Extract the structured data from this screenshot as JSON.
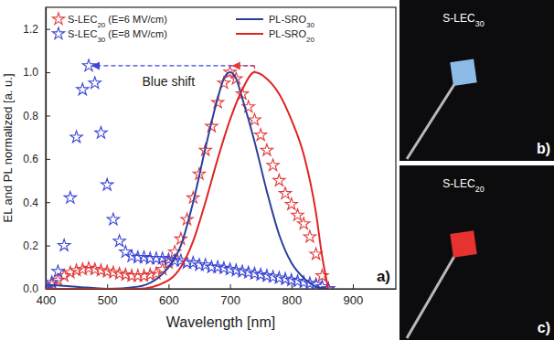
{
  "chart_data": {
    "type": "line",
    "x_label": "Wavelength [nm]",
    "y_label": "EL and PL normalized [a. u.]",
    "annotation": "Blue shift",
    "panel_label": "a)",
    "legend": "top",
    "xlim": [
      400,
      970
    ],
    "xticks": [
      400,
      500,
      600,
      700,
      800,
      900
    ],
    "ylim": [
      0,
      1.3
    ],
    "yticks": [
      {
        "value": 0,
        "label": "0.0"
      },
      0.2,
      0.4,
      0.6,
      0.8,
      {
        "value": 1,
        "label": "1.0"
      },
      1.2
    ],
    "series": [
      {
        "name": "S-LEC20 (E=6 MV/cm)",
        "type": "scatter",
        "marker": "star",
        "color": "#e23a3a",
        "x": [
          400,
          410,
          420,
          430,
          440,
          450,
          460,
          470,
          480,
          490,
          500,
          510,
          520,
          530,
          540,
          550,
          560,
          570,
          580,
          590,
          600,
          610,
          620,
          630,
          640,
          650,
          660,
          670,
          680,
          690,
          700,
          710,
          720,
          730,
          740,
          750,
          760,
          770,
          780,
          790,
          800,
          810,
          820,
          830,
          840,
          850,
          860
        ],
        "values": [
          0.0,
          0.02,
          0.04,
          0.06,
          0.075,
          0.085,
          0.09,
          0.095,
          0.09,
          0.085,
          0.08,
          0.075,
          0.07,
          0.065,
          0.06,
          0.06,
          0.06,
          0.065,
          0.07,
          0.09,
          0.12,
          0.17,
          0.23,
          0.32,
          0.42,
          0.53,
          0.64,
          0.75,
          0.86,
          0.95,
          1.0,
          0.97,
          0.9,
          0.84,
          0.78,
          0.71,
          0.64,
          0.57,
          0.5,
          0.44,
          0.39,
          0.34,
          0.3,
          0.24,
          0.16,
          0.06,
          0.0
        ]
      },
      {
        "name": "S-LEC30 (E=8 MV/cm)",
        "type": "scatter",
        "marker": "star",
        "color": "#3a45d6",
        "x": [
          400,
          410,
          420,
          430,
          440,
          450,
          460,
          470,
          480,
          490,
          500,
          510,
          520,
          530,
          540,
          550,
          560,
          570,
          580,
          590,
          600,
          610,
          620,
          630,
          640,
          650,
          660,
          670,
          680,
          690,
          700,
          710,
          720,
          730,
          740,
          750,
          760,
          770,
          780,
          790,
          800,
          810,
          820,
          830,
          840,
          850,
          860
        ],
        "values": [
          0.0,
          0.03,
          0.08,
          0.2,
          0.42,
          0.7,
          0.92,
          1.03,
          0.95,
          0.72,
          0.48,
          0.32,
          0.22,
          0.17,
          0.15,
          0.145,
          0.145,
          0.14,
          0.14,
          0.14,
          0.135,
          0.13,
          0.13,
          0.12,
          0.12,
          0.11,
          0.11,
          0.1,
          0.1,
          0.095,
          0.09,
          0.085,
          0.08,
          0.075,
          0.07,
          0.065,
          0.06,
          0.055,
          0.05,
          0.045,
          0.04,
          0.035,
          0.03,
          0.025,
          0.02,
          0.01,
          0.0
        ]
      },
      {
        "name": "PL-SRO30",
        "type": "line",
        "line_style": "solid",
        "color": "#2b3f9e",
        "x": [
          400,
          450,
          500,
          550,
          600,
          620,
          640,
          660,
          680,
          690,
          700,
          710,
          720,
          740,
          760,
          780,
          800,
          820,
          840,
          860
        ],
        "values": [
          0.02,
          0.01,
          0.0,
          0.01,
          0.1,
          0.2,
          0.4,
          0.65,
          0.88,
          0.97,
          1.0,
          0.97,
          0.88,
          0.68,
          0.45,
          0.25,
          0.12,
          0.05,
          0.01,
          0.0
        ]
      },
      {
        "name": "PL-SRO20",
        "type": "line",
        "line_style": "solid",
        "color": "#e02424",
        "x": [
          400,
          500,
          550,
          600,
          620,
          640,
          660,
          680,
          700,
          720,
          740,
          760,
          780,
          800,
          820,
          840,
          850,
          860
        ],
        "values": [
          0.0,
          0.0,
          0.0,
          0.04,
          0.1,
          0.22,
          0.4,
          0.6,
          0.78,
          0.92,
          1.0,
          0.97,
          0.9,
          0.78,
          0.62,
          0.35,
          0.15,
          0.0
        ]
      }
    ],
    "insets": [
      {
        "label": "S-LEC30",
        "tag": "b)",
        "color": "#8cbbe8"
      },
      {
        "label": "S-LEC20",
        "tag": "c)",
        "color": "#e8322f"
      }
    ]
  }
}
